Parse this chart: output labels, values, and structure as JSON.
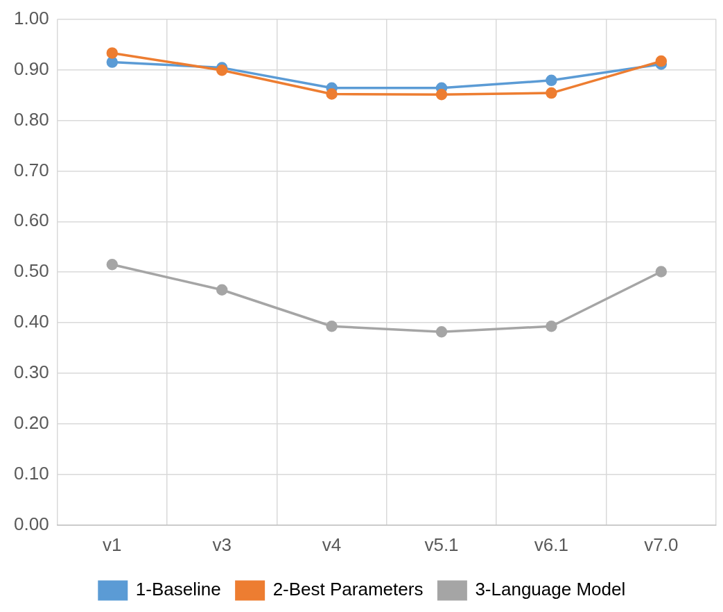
{
  "chart_data": {
    "type": "line",
    "categories": [
      "v1",
      "v3",
      "v4",
      "v5.1",
      "v6.1",
      "v7.0"
    ],
    "series": [
      {
        "name": "1-Baseline",
        "color": "#5b9bd5",
        "values": [
          0.915,
          0.904,
          0.864,
          0.864,
          0.879,
          0.911
        ]
      },
      {
        "name": "2-Best Parameters",
        "color": "#ed7d31",
        "values": [
          0.933,
          0.899,
          0.852,
          0.851,
          0.854,
          0.917
        ]
      },
      {
        "name": "3-Language Model",
        "color": "#a5a5a5",
        "values": [
          0.515,
          0.465,
          0.393,
          0.382,
          0.393,
          0.501
        ]
      }
    ],
    "ylim": [
      0,
      1
    ],
    "yticks": [
      {
        "value": 0,
        "label": "0.00"
      },
      {
        "value": 0.1,
        "label": "0.10"
      },
      {
        "value": 0.2,
        "label": "0.20"
      },
      {
        "value": 0.3,
        "label": "0.30"
      },
      {
        "value": 0.4,
        "label": "0.40"
      },
      {
        "value": 0.5,
        "label": "0.50"
      },
      {
        "value": 0.6,
        "label": "0.60"
      },
      {
        "value": 0.7,
        "label": "0.70"
      },
      {
        "value": 0.8,
        "label": "0.80"
      },
      {
        "value": 0.9,
        "label": "0.90"
      },
      {
        "value": 1,
        "label": "1.00"
      }
    ],
    "grid": true,
    "legend": "bottom",
    "marker": "circle",
    "line_style": "solid"
  }
}
